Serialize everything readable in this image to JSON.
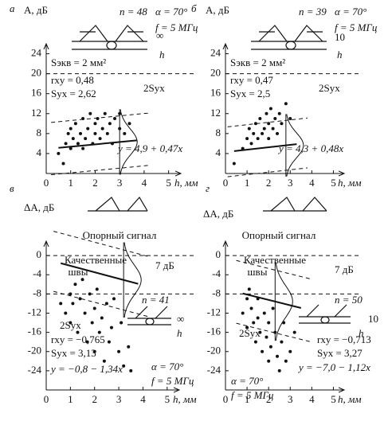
{
  "chart_data": [
    {
      "type": "scatter",
      "panel_label": "а",
      "y_label": "A, дБ",
      "x_label": "h, мм",
      "n_label": "n = 48",
      "angle_label": "α = 70°",
      "freq_label": "f = 5 МГц",
      "probe_gap_label": "∞",
      "probe_h_label": "h",
      "s_eq_label": "Sэкв = 2 мм²",
      "r_label": "rxy = 0,48",
      "s_label": "Syx = 2,62",
      "band_label": "2Syx",
      "equation": "y = 4,9 + 0,47x",
      "fit": {
        "intercept": 4.9,
        "slope": 0.47
      },
      "s_yx": 2.62,
      "reference_lines": [
        20
      ],
      "xlim": [
        0,
        5.5
      ],
      "xticks": [
        0,
        1,
        2,
        3,
        4,
        5
      ],
      "ylim": [
        0,
        26
      ],
      "yticks": [
        4,
        8,
        12,
        16,
        20,
        24
      ],
      "x": [
        0.5,
        0.7,
        0.8,
        0.9,
        1,
        1,
        1.1,
        1.2,
        1.3,
        1.4,
        1.5,
        1.5,
        1.6,
        1.7,
        1.8,
        1.9,
        2,
        2,
        2.1,
        2.2,
        2.3,
        2.4,
        2.5,
        2.6,
        2.7,
        2.8,
        3,
        3,
        3.2,
        3.4
      ],
      "values": [
        4,
        2,
        6,
        8,
        5,
        9,
        7,
        10,
        6,
        8,
        11,
        5,
        7,
        9,
        12,
        6,
        8,
        10,
        11,
        7,
        9,
        12,
        8,
        10,
        6,
        11,
        9,
        12,
        8,
        10
      ]
    },
    {
      "type": "scatter",
      "panel_label": "б",
      "y_label": "A, дБ",
      "x_label": "h, мм",
      "n_label": "n = 39",
      "angle_label": "α = 70°",
      "freq_label": "f = 5 МГц",
      "probe_gap_label": "10",
      "probe_h_label": "h",
      "s_eq_label": "Sэкв = 2 мм²",
      "r_label": "rxy = 0,47",
      "s_label": "Syx = 2,5",
      "band_label": "2Syx",
      "equation": "y = 4,3 + 0,48x",
      "fit": {
        "intercept": 4.3,
        "slope": 0.48
      },
      "s_yx": 2.5,
      "reference_lines": [
        20
      ],
      "xlim": [
        0,
        5.5
      ],
      "xticks": [
        0,
        1,
        2,
        3,
        4,
        5
      ],
      "ylim": [
        0,
        26
      ],
      "yticks": [
        4,
        8,
        12,
        16,
        20,
        24
      ],
      "x": [
        0.4,
        0.8,
        1,
        1.1,
        1.2,
        1.3,
        1.4,
        1.5,
        1.6,
        1.7,
        1.8,
        1.9,
        2,
        2,
        2.1,
        2.2,
        2.3,
        2.4,
        2.5,
        2.6,
        2.8,
        3
      ],
      "values": [
        2,
        5,
        7,
        9,
        6,
        8,
        10,
        7,
        11,
        8,
        9,
        12,
        10,
        7,
        13,
        9,
        11,
        8,
        12,
        10,
        14,
        11
      ]
    },
    {
      "type": "scatter",
      "panel_label": "в",
      "y_label": "ΔA, дБ",
      "x_label": "h, мм",
      "reference_label": "Опорный сигнал",
      "quality_label": [
        "Качественные",
        "швы"
      ],
      "gap_label": "7 дБ",
      "n_label": "n = 41",
      "angle_label": "α = 70°",
      "freq_label": "f = 5 МГц",
      "probe_gap_label": "∞",
      "probe_h_label": "h",
      "r_label": "rxy = −0,765",
      "s_label": "Syx = 3,13",
      "band_label": "2Syx",
      "equation": "y = −0,8 − 1,34x",
      "fit": {
        "intercept": -0.8,
        "slope": -1.34
      },
      "s_yx": 3.13,
      "reference_lines": [
        0,
        -8
      ],
      "xlim": [
        0,
        5.5
      ],
      "xticks": [
        0,
        1,
        2,
        3,
        4,
        5
      ],
      "ylim": [
        -28,
        3
      ],
      "yticks": [
        0,
        -4,
        -8,
        -12,
        -16,
        -20,
        -24
      ],
      "x": [
        0.6,
        0.8,
        1,
        1,
        1.1,
        1.2,
        1.3,
        1.4,
        1.5,
        1.6,
        1.7,
        1.8,
        1.9,
        2,
        2,
        2.1,
        2.2,
        2.3,
        2.4,
        2.5,
        2.6,
        2.7,
        2.8,
        3,
        3.1,
        3.2,
        3.4,
        3.5
      ],
      "values": [
        -10,
        -12,
        -8,
        -14,
        -10,
        -6,
        -16,
        -9,
        -5,
        -12,
        -18,
        -8,
        -14,
        -11,
        -20,
        -7,
        -16,
        -13,
        -22,
        -10,
        -18,
        -15,
        -9,
        -20,
        -14,
        -23,
        -19,
        -24
      ]
    },
    {
      "type": "scatter",
      "panel_label": "г",
      "y_label": "ΔA, дБ",
      "x_label": "h, мм",
      "reference_label": "Опорный сигнал",
      "quality_label": [
        "Качественные",
        "швы"
      ],
      "gap_label": "7 дБ",
      "n_label": "n = 50",
      "angle_label": "α = 70°",
      "freq_label": "f = 5 МГц",
      "probe_gap_label": "10",
      "probe_h_label": "h",
      "r_label": "rxy = −0,713",
      "s_label": "Syx = 3,27",
      "band_label": "2Syx",
      "equation": "y = −7,0 − 1,12x",
      "fit": {
        "intercept": -7.0,
        "slope": -1.12
      },
      "s_yx": 3.27,
      "reference_lines": [
        0,
        -8
      ],
      "xlim": [
        0,
        5.5
      ],
      "xticks": [
        0,
        1,
        2,
        3,
        4,
        5
      ],
      "ylim": [
        -28,
        3
      ],
      "yticks": [
        0,
        -4,
        -8,
        -12,
        -16,
        -20,
        -24
      ],
      "x": [
        0.8,
        1,
        1,
        1.1,
        1.2,
        1.3,
        1.4,
        1.5,
        1.5,
        1.6,
        1.7,
        1.8,
        1.9,
        2,
        2,
        2.1,
        2.2,
        2.3,
        2.4,
        2.5,
        2.6,
        2.7,
        2.8,
        3,
        3.2
      ],
      "values": [
        -12,
        -9,
        -15,
        -7,
        -11,
        -14,
        -18,
        -9,
        -13,
        -16,
        -20,
        -12,
        -17,
        -14,
        -22,
        -19,
        -11,
        -16,
        -21,
        -24,
        -18,
        -14,
        -22,
        -20,
        -16
      ]
    }
  ]
}
